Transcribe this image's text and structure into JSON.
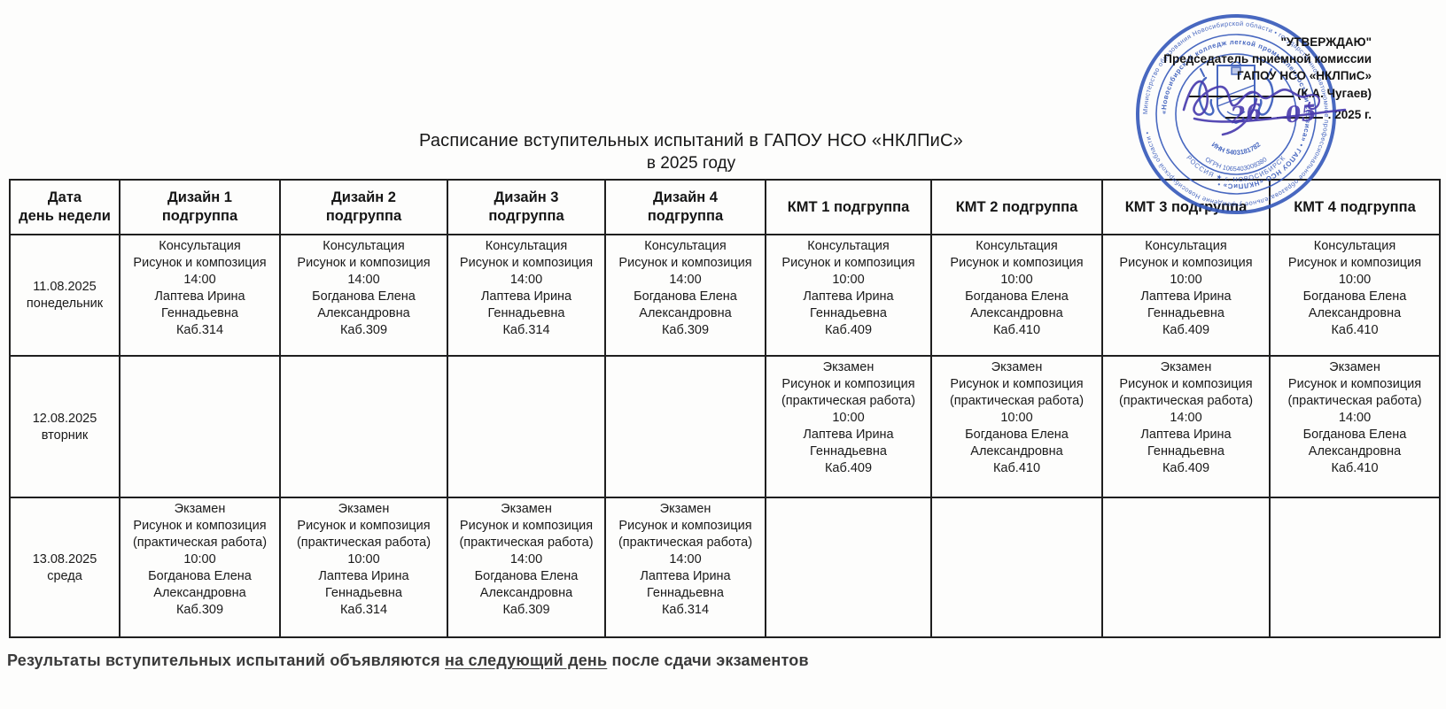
{
  "title": {
    "line1": "Расписание вступительных испытаний в ГАПОУ НСО «НКЛПиС»",
    "line2": "в 2025 году"
  },
  "approval": {
    "line1": "\"УТВЕРЖДАЮ\"",
    "line2": "Председатель приемной комиссии",
    "line3": "ГАПОУ НСО «НКЛПиС»",
    "signature_name": "(К.А. Чугаев)",
    "date_day": "26",
    "date_month": "05",
    "date_separator": ".",
    "date_year": "2025 г."
  },
  "stamp": {
    "color": "#3558ba",
    "outer_ring_text": "Министерство образования Новосибирской области • государственное автономное профессиональное образовательное учреждение Новосибирской области •",
    "inner_ring_text": "«Новосибирский колледж легкой промышленности и сервиса» • ГАПОУ НСО «НКЛПиС» •",
    "inn": "ИНН 5403181782",
    "ogrn": "ОГРН 1065403008380",
    "bottom_text": "РОССИЯ ★ г. НОВОСИБИРСК"
  },
  "table": {
    "headers": [
      {
        "lines": [
          "Дата",
          "день недели"
        ]
      },
      {
        "lines": [
          "Дизайн 1",
          "подгруппа"
        ]
      },
      {
        "lines": [
          "Дизайн 2",
          "подгруппа"
        ]
      },
      {
        "lines": [
          "Дизайн 3",
          "подгруппа"
        ]
      },
      {
        "lines": [
          "Дизайн 4",
          "подгруппа"
        ]
      },
      {
        "lines": [
          "КМТ 1 подгруппа"
        ]
      },
      {
        "lines": [
          "КМТ 2 подгруппа"
        ]
      },
      {
        "lines": [
          "КМТ 3 подгруппа"
        ]
      },
      {
        "lines": [
          "КМТ 4 подгруппа"
        ]
      }
    ],
    "rows": [
      {
        "date": [
          "11.08.2025",
          "понедельник"
        ],
        "cells": [
          [
            "Консультация",
            "Рисунок и композиция",
            "14:00",
            "Лаптева Ирина Геннадьевна",
            "Каб.314"
          ],
          [
            "Консультация",
            "Рисунок и композиция",
            "14:00",
            "Богданова Елена Александровна",
            "Каб.309"
          ],
          [
            "Консультация",
            "Рисунок и композиция",
            "14:00",
            "Лаптева Ирина Геннадьевна",
            "Каб.314"
          ],
          [
            "Консультация",
            "Рисунок и композиция",
            "14:00",
            "Богданова Елена Александровна",
            "Каб.309"
          ],
          [
            "Консультация",
            "Рисунок и композиция",
            "10:00",
            "Лаптева Ирина Геннадьевна",
            "Каб.409"
          ],
          [
            "Консультация",
            "Рисунок и композиция",
            "10:00",
            "Богданова Елена Александровна",
            "Каб.410"
          ],
          [
            "Консультация",
            "Рисунок и композиция",
            "10:00",
            "Лаптева Ирина Геннадьевна",
            "Каб.409"
          ],
          [
            "Консультация",
            "Рисунок и композиция",
            "10:00",
            "Богданова Елена Александровна",
            "Каб.410"
          ]
        ]
      },
      {
        "date": [
          "12.08.2025",
          "вторник"
        ],
        "cells": [
          [],
          [],
          [],
          [],
          [
            "Экзамен",
            "Рисунок и композиция",
            "(практическая работа)",
            "10:00",
            "Лаптева Ирина Геннадьевна",
            "Каб.409"
          ],
          [
            "Экзамен",
            "Рисунок и композиция",
            "(практическая работа)",
            "10:00",
            "Богданова Елена Александровна",
            "Каб.410"
          ],
          [
            "Экзамен",
            "Рисунок и композиция",
            "(практическая работа)",
            "14:00",
            "Лаптева Ирина Геннадьевна",
            "Каб.409"
          ],
          [
            "Экзамен",
            "Рисунок и композиция",
            "(практическая работа)",
            "14:00",
            "Богданова Елена Александровна",
            "Каб.410"
          ]
        ]
      },
      {
        "date": [
          "13.08.2025",
          "среда"
        ],
        "cells": [
          [
            "Экзамен",
            "Рисунок и композиция",
            "(практическая работа)",
            "10:00",
            "Богданова Елена Александровна",
            "Каб.309"
          ],
          [
            "Экзамен",
            "Рисунок и композиция",
            "(практическая работа)",
            "10:00",
            "Лаптева Ирина Геннадьевна",
            "Каб.314"
          ],
          [
            "Экзамен",
            "Рисунок и композиция",
            "(практическая работа)",
            "14:00",
            "Богданова Елена Александровна",
            "Каб.309"
          ],
          [
            "Экзамен",
            "Рисунок и композиция",
            "(практическая работа)",
            "14:00",
            "Лаптева Ирина Геннадьевна",
            "Каб.314"
          ],
          [],
          [],
          [],
          []
        ]
      }
    ]
  },
  "footer": {
    "prefix": "Результаты вступительных испытаний объявляются ",
    "underlined": "на следующий день",
    "suffix": " после сдачи экзаментов"
  }
}
